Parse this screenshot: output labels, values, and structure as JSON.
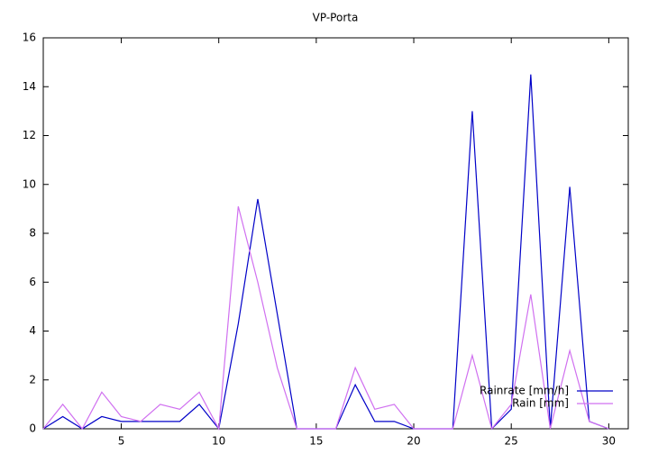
{
  "chart_data": {
    "type": "line",
    "title": "VP-Porta",
    "x": [
      1,
      2,
      3,
      4,
      5,
      6,
      7,
      8,
      9,
      10,
      11,
      12,
      13,
      14,
      15,
      16,
      17,
      18,
      19,
      20,
      21,
      22,
      23,
      24,
      25,
      26,
      27,
      28,
      29,
      30
    ],
    "series": [
      {
        "name": "Rainrate [mm/h]",
        "color": "#0000c8",
        "values": [
          0,
          0.5,
          0,
          0.5,
          0.3,
          0.3,
          0.3,
          0.3,
          1.0,
          0,
          4.3,
          9.4,
          4.7,
          0,
          0,
          0,
          1.8,
          0.3,
          0.3,
          0,
          0,
          0,
          13.0,
          0,
          0.8,
          14.5,
          0,
          9.9,
          0.3,
          0
        ]
      },
      {
        "name": "Rain [mm]",
        "color": "#d070f0",
        "values": [
          0,
          1.0,
          0,
          1.5,
          0.5,
          0.3,
          1.0,
          0.8,
          1.5,
          0,
          9.1,
          6.0,
          2.5,
          0,
          0,
          0,
          2.5,
          0.8,
          1.0,
          0,
          0,
          0,
          3.0,
          0,
          1.0,
          5.5,
          0,
          3.2,
          0.3,
          0
        ]
      }
    ],
    "xlim": [
      1,
      31
    ],
    "xticks": [
      5,
      10,
      15,
      20,
      25,
      30
    ],
    "ylim": [
      0,
      16
    ],
    "yticks": [
      0,
      2,
      4,
      6,
      8,
      10,
      12,
      14,
      16
    ],
    "legend": "bottom-right"
  }
}
